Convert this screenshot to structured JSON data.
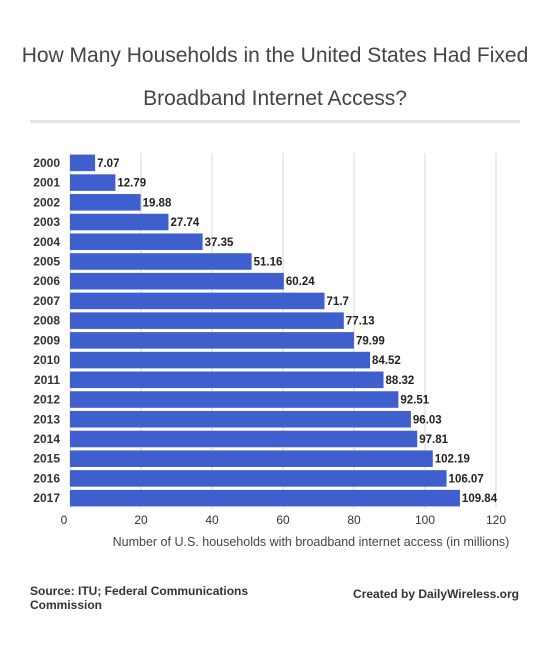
{
  "chart_data": {
    "type": "bar",
    "orientation": "horizontal",
    "title": "How Many Households in the United States Had Fixed Broadband Internet Access?",
    "xlabel": "Number of U.S. households with broadband internet access (in millions)",
    "ylabel": "",
    "xlim": [
      0,
      120
    ],
    "xticks": [
      0,
      20,
      40,
      60,
      80,
      100,
      120
    ],
    "grid": true,
    "categories": [
      "2000",
      "2001",
      "2002",
      "2003",
      "2004",
      "2005",
      "2006",
      "2007",
      "2008",
      "2009",
      "2010",
      "2011",
      "2012",
      "2013",
      "2014",
      "2015",
      "2016",
      "2017"
    ],
    "values": [
      7.07,
      12.79,
      19.88,
      27.74,
      37.35,
      51.16,
      60.24,
      71.7,
      77.13,
      79.99,
      84.52,
      88.32,
      92.51,
      96.03,
      97.81,
      102.19,
      106.07,
      109.84
    ],
    "value_labels": [
      "7.07",
      "12.79",
      "19.88",
      "27.74",
      "37.35",
      "51.16",
      "60.24",
      "71.7",
      "77.13",
      "79.99",
      "84.52",
      "88.32",
      "92.51",
      "96.03",
      "97.81",
      "102.19",
      "106.07",
      "109.84"
    ],
    "bar_color": "#3f5fcf"
  },
  "footer": {
    "source": "Source:  ITU; Federal Communications Commission",
    "credit": "Created by DailyWireless.org"
  }
}
